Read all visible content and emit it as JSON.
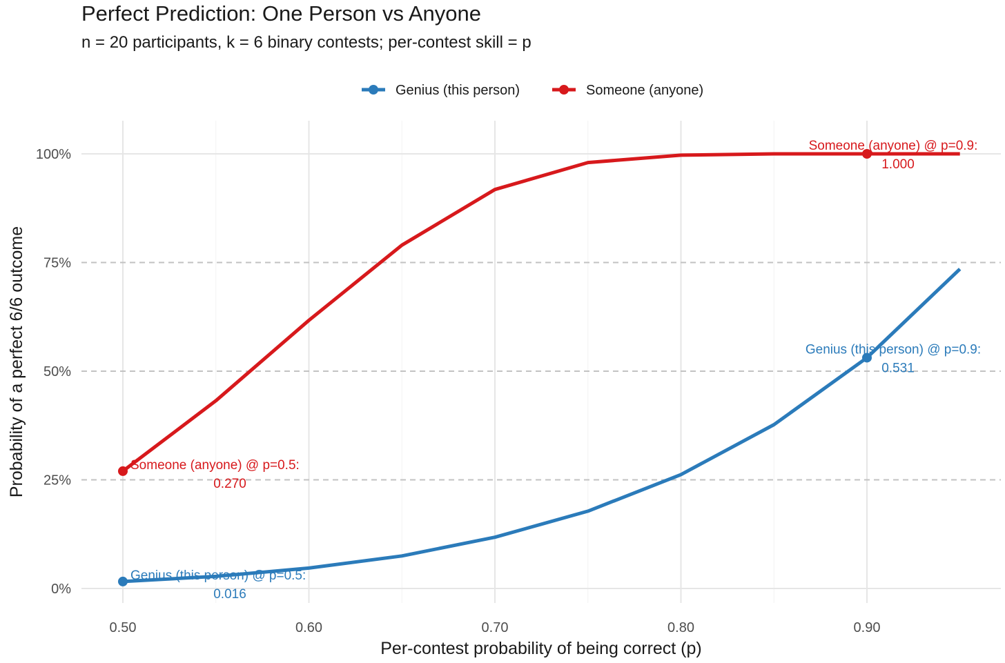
{
  "chart_data": {
    "type": "line",
    "title": "Perfect Prediction: One Person vs Anyone",
    "subtitle": "n = 20 participants, k = 6 binary contests; per-contest skill = p",
    "xlabel": "Per-contest probability of being correct (p)",
    "ylabel": "Probability of a perfect 6/6 outcome",
    "xlim": [
      0.5,
      0.95
    ],
    "ylim": [
      0,
      1
    ],
    "x_ticks": [
      "0.50",
      "0.60",
      "0.70",
      "0.80",
      "0.90"
    ],
    "x_tick_values": [
      0.5,
      0.6,
      0.7,
      0.8,
      0.9
    ],
    "y_ticks": [
      "0%",
      "25%",
      "50%",
      "75%",
      "100%"
    ],
    "y_tick_values": [
      0,
      0.25,
      0.5,
      0.75,
      1.0
    ],
    "grid": true,
    "legend_position": "top",
    "series": [
      {
        "name": "Genius (this person)",
        "color": "#2b7bba",
        "x": [
          0.5,
          0.55,
          0.6,
          0.65,
          0.7,
          0.75,
          0.8,
          0.85,
          0.9,
          0.95
        ],
        "values": [
          0.016,
          0.028,
          0.047,
          0.075,
          0.118,
          0.178,
          0.262,
          0.377,
          0.531,
          0.735
        ]
      },
      {
        "name": "Someone (anyone)",
        "color": "#d7191c",
        "x": [
          0.5,
          0.55,
          0.6,
          0.65,
          0.7,
          0.75,
          0.8,
          0.85,
          0.9,
          0.95
        ],
        "values": [
          0.27,
          0.432,
          0.617,
          0.79,
          0.918,
          0.98,
          0.997,
          1.0,
          1.0,
          1.0
        ]
      }
    ],
    "highlight_points": [
      {
        "series": 0,
        "x": 0.5,
        "y": 0.016,
        "label_line1": "Genius (this person) @ p=0.5:",
        "label_line2": "0.016"
      },
      {
        "series": 0,
        "x": 0.9,
        "y": 0.531,
        "label_line1": "Genius (this person) @ p=0.9:",
        "label_line2": "0.531"
      },
      {
        "series": 1,
        "x": 0.5,
        "y": 0.27,
        "label_line1": "Someone (anyone) @ p=0.5:",
        "label_line2": "0.270"
      },
      {
        "series": 1,
        "x": 0.9,
        "y": 1.0,
        "label_line1": "Someone (anyone) @ p=0.9:",
        "label_line2": "1.000"
      }
    ]
  }
}
